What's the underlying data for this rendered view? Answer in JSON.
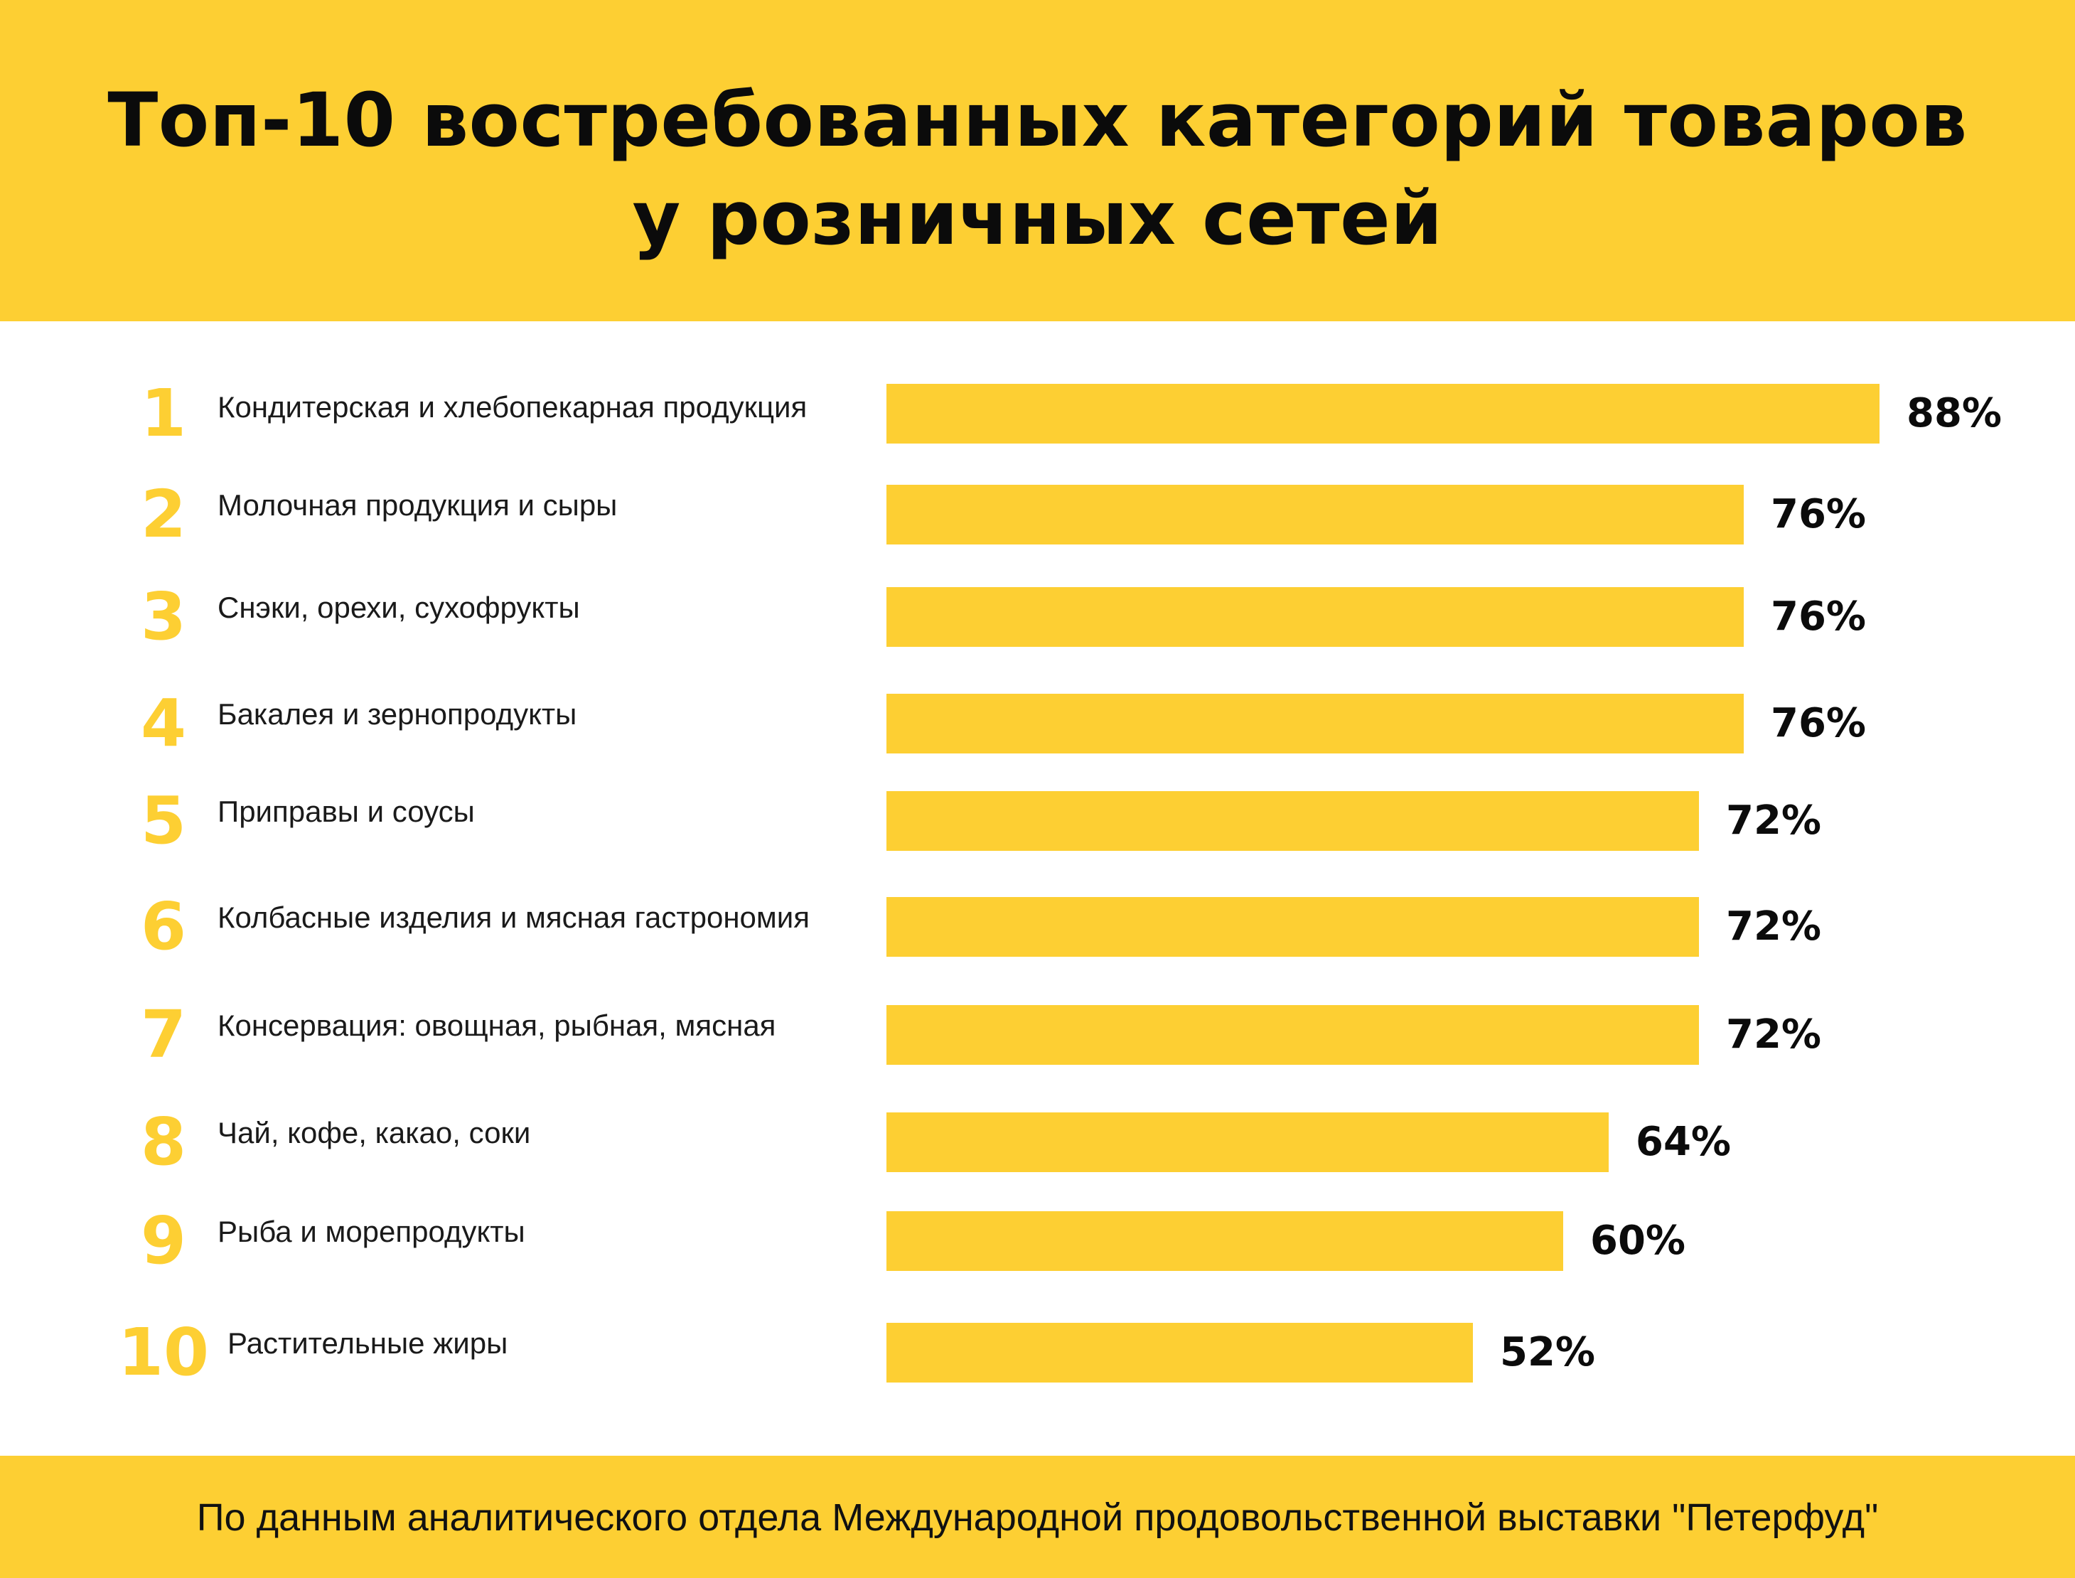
{
  "title": {
    "line1": "Топ-10 востребованных категорий товаров",
    "line2": "у розничных сетей"
  },
  "source": "По данным аналитического отдела Международной продовольственной выставки \"Петерфуд\"",
  "colors": {
    "accent": "#fdcf33",
    "text": "#0b0b0b",
    "background": "#ffffff"
  },
  "chart_data": {
    "type": "bar",
    "orientation": "horizontal",
    "title": "Топ-10 востребованных категорий товаров у розничных сетей",
    "xlabel": "",
    "ylabel": "",
    "xlim": [
      0,
      100
    ],
    "grid": false,
    "legend": "none",
    "ranks": [
      "1",
      "2",
      "3",
      "4",
      "5",
      "6",
      "7",
      "8",
      "9",
      "10"
    ],
    "categories": [
      "Кондитерская и хлебопекарная продукция",
      "Молочная продукция и сыры",
      "Снэки, орехи, сухофрукты",
      "Бакалея и зернопродукты",
      "Приправы и соусы",
      "Колбасные изделия и мясная гастрономия",
      "Консервация: овощная, рыбная, мясная",
      "Чай, кофе, какао, соки",
      "Рыба и морепродукты",
      "Растительные жиры"
    ],
    "values": [
      88,
      76,
      76,
      76,
      72,
      72,
      72,
      64,
      60,
      52
    ],
    "value_labels": [
      "88%",
      "76%",
      "76%",
      "76%",
      "72%",
      "72%",
      "72%",
      "64%",
      "60%",
      "52%"
    ]
  }
}
